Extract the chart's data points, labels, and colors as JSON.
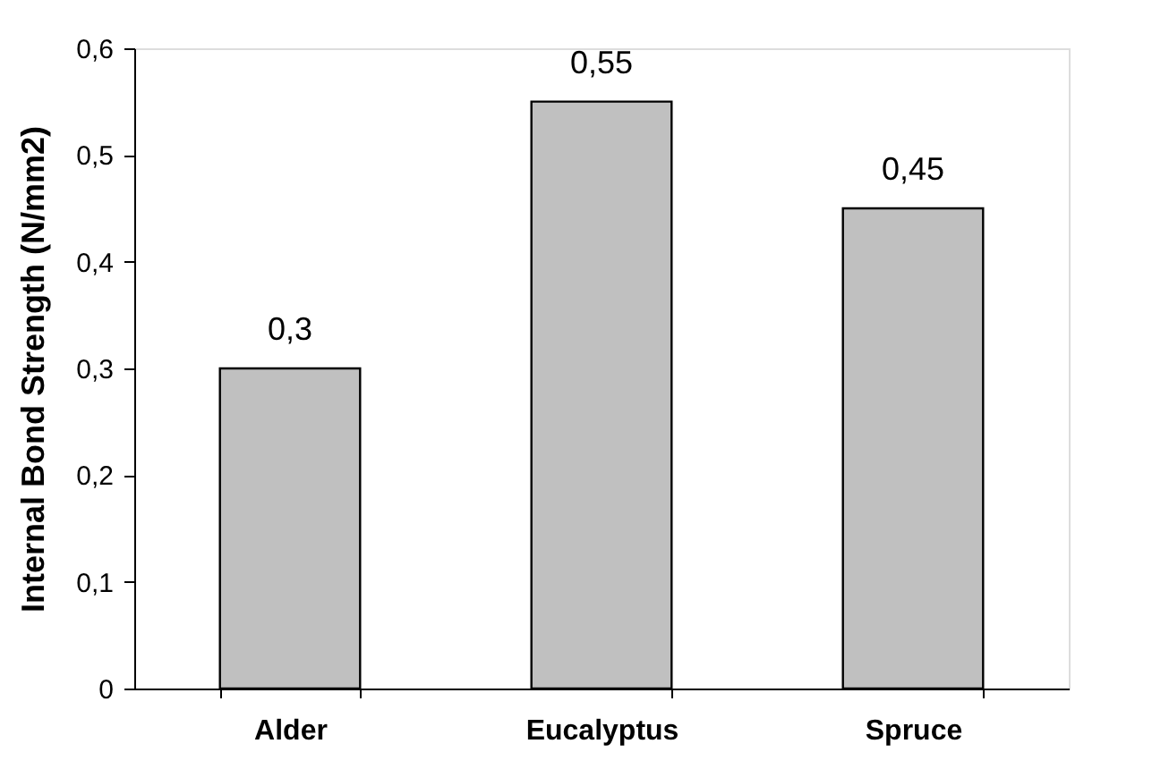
{
  "chart_data": {
    "type": "bar",
    "ylabel": "Internal Bond Strength (N/mm2)",
    "categories": [
      "Alder",
      "Eucalyptus",
      "Spruce"
    ],
    "values": [
      0.3,
      0.55,
      0.45
    ],
    "color": "#c0c0c0",
    "value_labels": [
      "0,3",
      "0,55",
      "0,45"
    ],
    "ylim": [
      0,
      0.6
    ],
    "yticks": [
      0,
      {
        "value": 0.1,
        "label": "0,1"
      },
      {
        "value": 0.2,
        "label": "0,2"
      },
      {
        "value": 0.3,
        "label": "0,3"
      },
      {
        "value": 0.4,
        "label": "0,4"
      },
      {
        "value": 0.5,
        "label": "0,5"
      },
      {
        "value": 0.6,
        "label": "0,6"
      }
    ],
    "grid": false
  }
}
